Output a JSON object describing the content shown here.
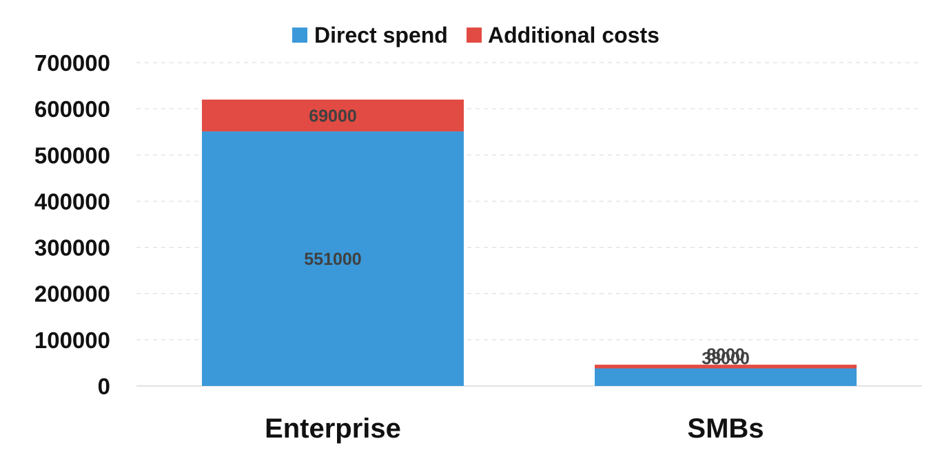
{
  "chart_data": {
    "type": "bar",
    "stacked": true,
    "categories": [
      "Enterprise",
      "SMBs"
    ],
    "series": [
      {
        "name": "Direct spend",
        "values": [
          551000,
          38000
        ],
        "color": "#3b99d9"
      },
      {
        "name": "Additional costs",
        "values": [
          69000,
          8000
        ],
        "color": "#e24b43"
      }
    ],
    "ylim": [
      0,
      700000
    ],
    "yticks": [
      0,
      100000,
      200000,
      300000,
      400000,
      500000,
      600000,
      700000
    ],
    "grid": true,
    "legend_position": "top-center",
    "data_labels": true
  }
}
